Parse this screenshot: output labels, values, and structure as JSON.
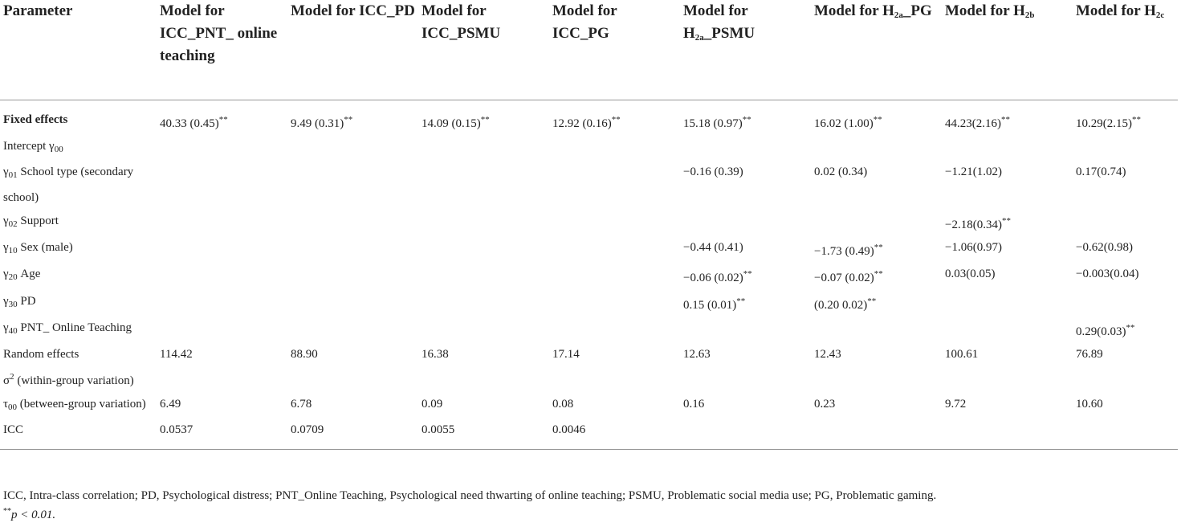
{
  "headers": [
    {
      "text": "Parameter"
    },
    {
      "pre": "Model for ICC_PNT_ online teaching"
    },
    {
      "pre": "Model for ICC_PD"
    },
    {
      "pre": "Model for ICC_PSMU"
    },
    {
      "pre": "Model for ICC_PG"
    },
    {
      "pre": "Model for H",
      "sub": "2a",
      "post": "_PSMU"
    },
    {
      "pre": "Model for H",
      "sub": "2a",
      "post": "_PG"
    },
    {
      "pre": "Model for H",
      "sub": "2b",
      "post": ""
    },
    {
      "pre": "Model for H",
      "sub": "2c",
      "post": ""
    }
  ],
  "rows": [
    {
      "label": "Fixed effects",
      "bold": true,
      "cells": [
        "40.33 (0.45)**",
        "9.49 (0.31)**",
        "14.09 (0.15)**",
        "12.92 (0.16)**",
        "15.18 (0.97)**",
        "16.02 (1.00)**",
        "44.23(2.16)**",
        "10.29(2.15)**"
      ]
    },
    {
      "label_pre": "Intercept γ",
      "label_sub": "00",
      "label_post": "",
      "cells": [
        "",
        "",
        "",
        "",
        "",
        "",
        "",
        ""
      ]
    },
    {
      "label_pre": "γ",
      "label_sub": "01",
      "label_post": " School type (secondary school)",
      "cells": [
        "",
        "",
        "",
        "",
        "−0.16 (0.39)",
        "0.02 (0.34)",
        "−1.21(1.02)",
        "0.17(0.74)"
      ]
    },
    {
      "label_pre": "γ",
      "label_sub": "02",
      "label_post": " Support",
      "cells": [
        "",
        "",
        "",
        "",
        "",
        "",
        "−2.18(0.34)**",
        ""
      ]
    },
    {
      "label_pre": "γ",
      "label_sub": "10",
      "label_post": " Sex (male)",
      "cells": [
        "",
        "",
        "",
        "",
        "−0.44 (0.41)",
        "−1.73 (0.49)**",
        "−1.06(0.97)",
        "−0.62(0.98)"
      ]
    },
    {
      "label_pre": "γ",
      "label_sub": "20",
      "label_post": " Age",
      "cells": [
        "",
        "",
        "",
        "",
        "−0.06 (0.02)**",
        "−0.07 (0.02)**",
        "0.03(0.05)",
        "−0.003(0.04)"
      ]
    },
    {
      "label_pre": "γ",
      "label_sub": "30",
      "label_post": " PD",
      "cells": [
        "",
        "",
        "",
        "",
        "0.15 (0.01)**",
        "(0.20 0.02)**",
        "",
        ""
      ]
    },
    {
      "label_pre": "γ",
      "label_sub": "40",
      "label_post": " PNT_ Online Teaching",
      "cells": [
        "",
        "",
        "",
        "",
        "",
        "",
        "",
        "0.29(0.03)**"
      ]
    },
    {
      "label": "Random effects",
      "cells": [
        "114.42",
        "88.90",
        "16.38",
        "17.14",
        "12.63",
        "12.43",
        "100.61",
        "76.89"
      ]
    },
    {
      "label_pre": "σ",
      "label_sup": "2",
      "label_post": " (within-group variation)",
      "cells": [
        "",
        "",
        "",
        "",
        "",
        "",
        "",
        ""
      ]
    },
    {
      "label_pre": "τ",
      "label_sub": "00",
      "label_post": " (between-group variation)",
      "cells": [
        "6.49",
        "6.78",
        "0.09",
        "0.08",
        "0.16",
        "0.23",
        "9.72",
        "10.60"
      ]
    },
    {
      "label": "ICC",
      "cells": [
        "0.0537",
        "0.0709",
        "0.0055",
        "0.0046",
        "",
        "",
        "",
        ""
      ]
    }
  ],
  "footnote": "ICC, Intra-class correlation; PD, Psychological distress; PNT_Online Teaching, Psychological need thwarting of online teaching; PSMU, Problematic social media use; PG, Problematic gaming.",
  "footnote2": {
    "sup": "**",
    "text": "p < 0.01."
  }
}
